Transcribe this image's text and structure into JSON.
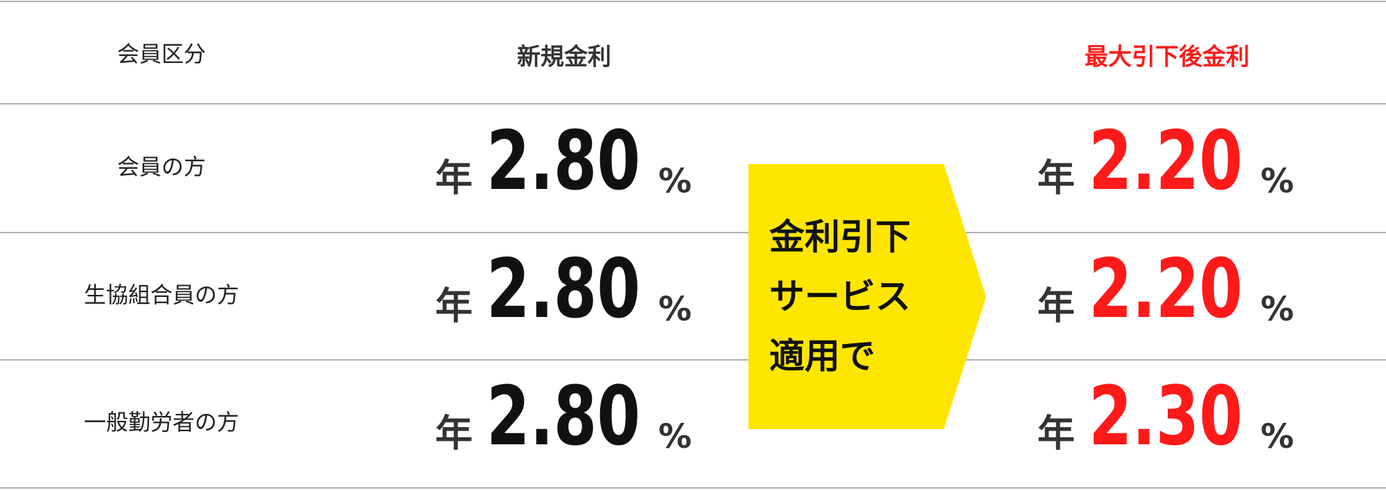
{
  "header": {
    "columns": [
      "会員区分",
      "新規金利",
      "最大引下後金利"
    ]
  },
  "rows": [
    {
      "label": "会員の方",
      "new_rate": {
        "prefix": "年",
        "value": "2.80",
        "unit": "%"
      },
      "discounted_rate": {
        "prefix": "年",
        "value": "2.20",
        "unit": "%"
      }
    },
    {
      "label": "生協組合員の方",
      "new_rate": {
        "prefix": "年",
        "value": "2.80",
        "unit": "%"
      },
      "discounted_rate": {
        "prefix": "年",
        "value": "2.20",
        "unit": "%"
      }
    },
    {
      "label": "一般勤労者の方",
      "new_rate": {
        "prefix": "年",
        "value": "2.80",
        "unit": "%"
      },
      "discounted_rate": {
        "prefix": "年",
        "value": "2.30",
        "unit": "%"
      }
    }
  ],
  "banner": {
    "lines": [
      "金利引下",
      "サービス",
      "適用で"
    ]
  }
}
